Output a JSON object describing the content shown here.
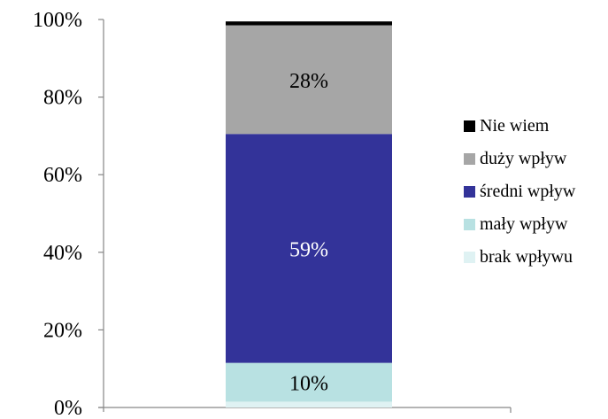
{
  "chart_data": {
    "type": "bar",
    "stacked": true,
    "categories": [
      ""
    ],
    "series": [
      {
        "name": "brak wpływu",
        "values": [
          1.5
        ],
        "color": "#dff2f3",
        "label": ""
      },
      {
        "name": "mały wpływ",
        "values": [
          10
        ],
        "color": "#b8e1e2",
        "label": "10%"
      },
      {
        "name": "średni wpływ",
        "values": [
          59
        ],
        "color": "#333399",
        "label": "59%"
      },
      {
        "name": "duży wpływ",
        "values": [
          28
        ],
        "color": "#a6a6a6",
        "label": "28%"
      },
      {
        "name": "Nie wiem",
        "values": [
          1
        ],
        "color": "#000000",
        "label": ""
      }
    ],
    "ylim": [
      0,
      100
    ],
    "yticks": [
      "0%",
      "20%",
      "40%",
      "60%",
      "80%",
      "100%"
    ],
    "ytick_values": [
      0,
      20,
      40,
      60,
      80,
      100
    ],
    "grid": false,
    "legend_position": "right",
    "legend_order": [
      "Nie wiem",
      "duży wpływ",
      "średni wpływ",
      "mały wpływ",
      "brak wpływu"
    ],
    "label_colors": {
      "10%": "#000000",
      "59%": "#ffffff",
      "28%": "#000000"
    }
  }
}
